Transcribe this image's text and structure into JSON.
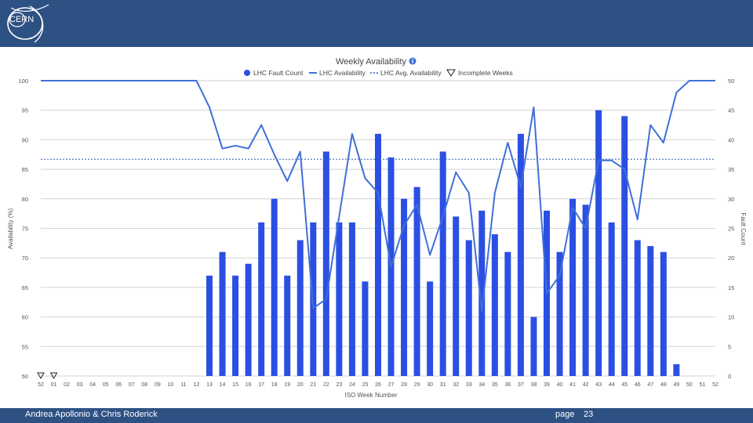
{
  "header": {
    "logo_text": "CERN"
  },
  "footer": {
    "author": "Andrea Apollonio & Chris Roderick",
    "page_label": "page",
    "page_number": "23"
  },
  "colors": {
    "bar": "#2b4fe3",
    "line": "#3f6fd8",
    "avg_line": "#2d5fb8",
    "grid": "#d3d3d3",
    "brand": "#2e5184"
  },
  "chart_data": {
    "type": "bar+line",
    "title": "Weekly Availability",
    "title_icon": "info-icon",
    "xlabel": "ISO Week Number",
    "ylabel_left": "Availability (%)",
    "ylabel_right": "Fault Count",
    "ylim_left": [
      50,
      100
    ],
    "ylim_right": [
      0,
      50
    ],
    "yticks_left": [
      50,
      55,
      60,
      65,
      70,
      75,
      80,
      85,
      90,
      95,
      100
    ],
    "yticks_right": [
      0,
      5,
      10,
      15,
      20,
      25,
      30,
      35,
      40,
      45,
      50
    ],
    "legend": {
      "position": "top",
      "entries": [
        "LHC Fault Count",
        "LHC Availability",
        "LHC Avg. Availability",
        "Incomplete Weeks"
      ]
    },
    "categories": [
      "52",
      "01",
      "02",
      "03",
      "04",
      "05",
      "06",
      "07",
      "08",
      "09",
      "10",
      "11",
      "12",
      "13",
      "14",
      "15",
      "16",
      "17",
      "18",
      "19",
      "20",
      "21",
      "22",
      "23",
      "24",
      "25",
      "26",
      "27",
      "28",
      "29",
      "30",
      "31",
      "32",
      "33",
      "34",
      "35",
      "36",
      "37",
      "38",
      "39",
      "40",
      "41",
      "42",
      "43",
      "44",
      "45",
      "46",
      "47",
      "48",
      "49",
      "50",
      "51",
      "52"
    ],
    "fault_count": [
      null,
      null,
      null,
      null,
      null,
      null,
      null,
      null,
      null,
      null,
      null,
      null,
      null,
      17,
      21,
      17,
      19,
      26,
      30,
      17,
      23,
      26,
      38,
      26,
      26,
      16,
      41,
      37,
      30,
      32,
      16,
      38,
      27,
      23,
      28,
      24,
      21,
      41,
      10,
      28,
      21,
      30,
      29,
      45,
      26,
      44,
      23,
      22,
      21,
      2,
      null,
      null,
      null
    ],
    "availability": [
      100,
      100,
      100,
      100,
      100,
      100,
      100,
      100,
      100,
      100,
      100,
      100,
      100,
      95.5,
      88.5,
      89,
      88.5,
      92.5,
      87.5,
      83,
      88,
      61.5,
      63,
      77,
      91,
      83.5,
      81,
      68.5,
      75.5,
      79,
      70.5,
      77,
      84.5,
      81,
      61,
      81,
      89.5,
      82,
      95.5,
      64,
      67,
      78.5,
      75,
      86.5,
      86.5,
      85,
      76.5,
      92.5,
      89.5,
      98,
      100,
      100,
      100
    ],
    "avg_availability": 86.7,
    "incomplete_weeks": [
      "52",
      "01"
    ]
  }
}
